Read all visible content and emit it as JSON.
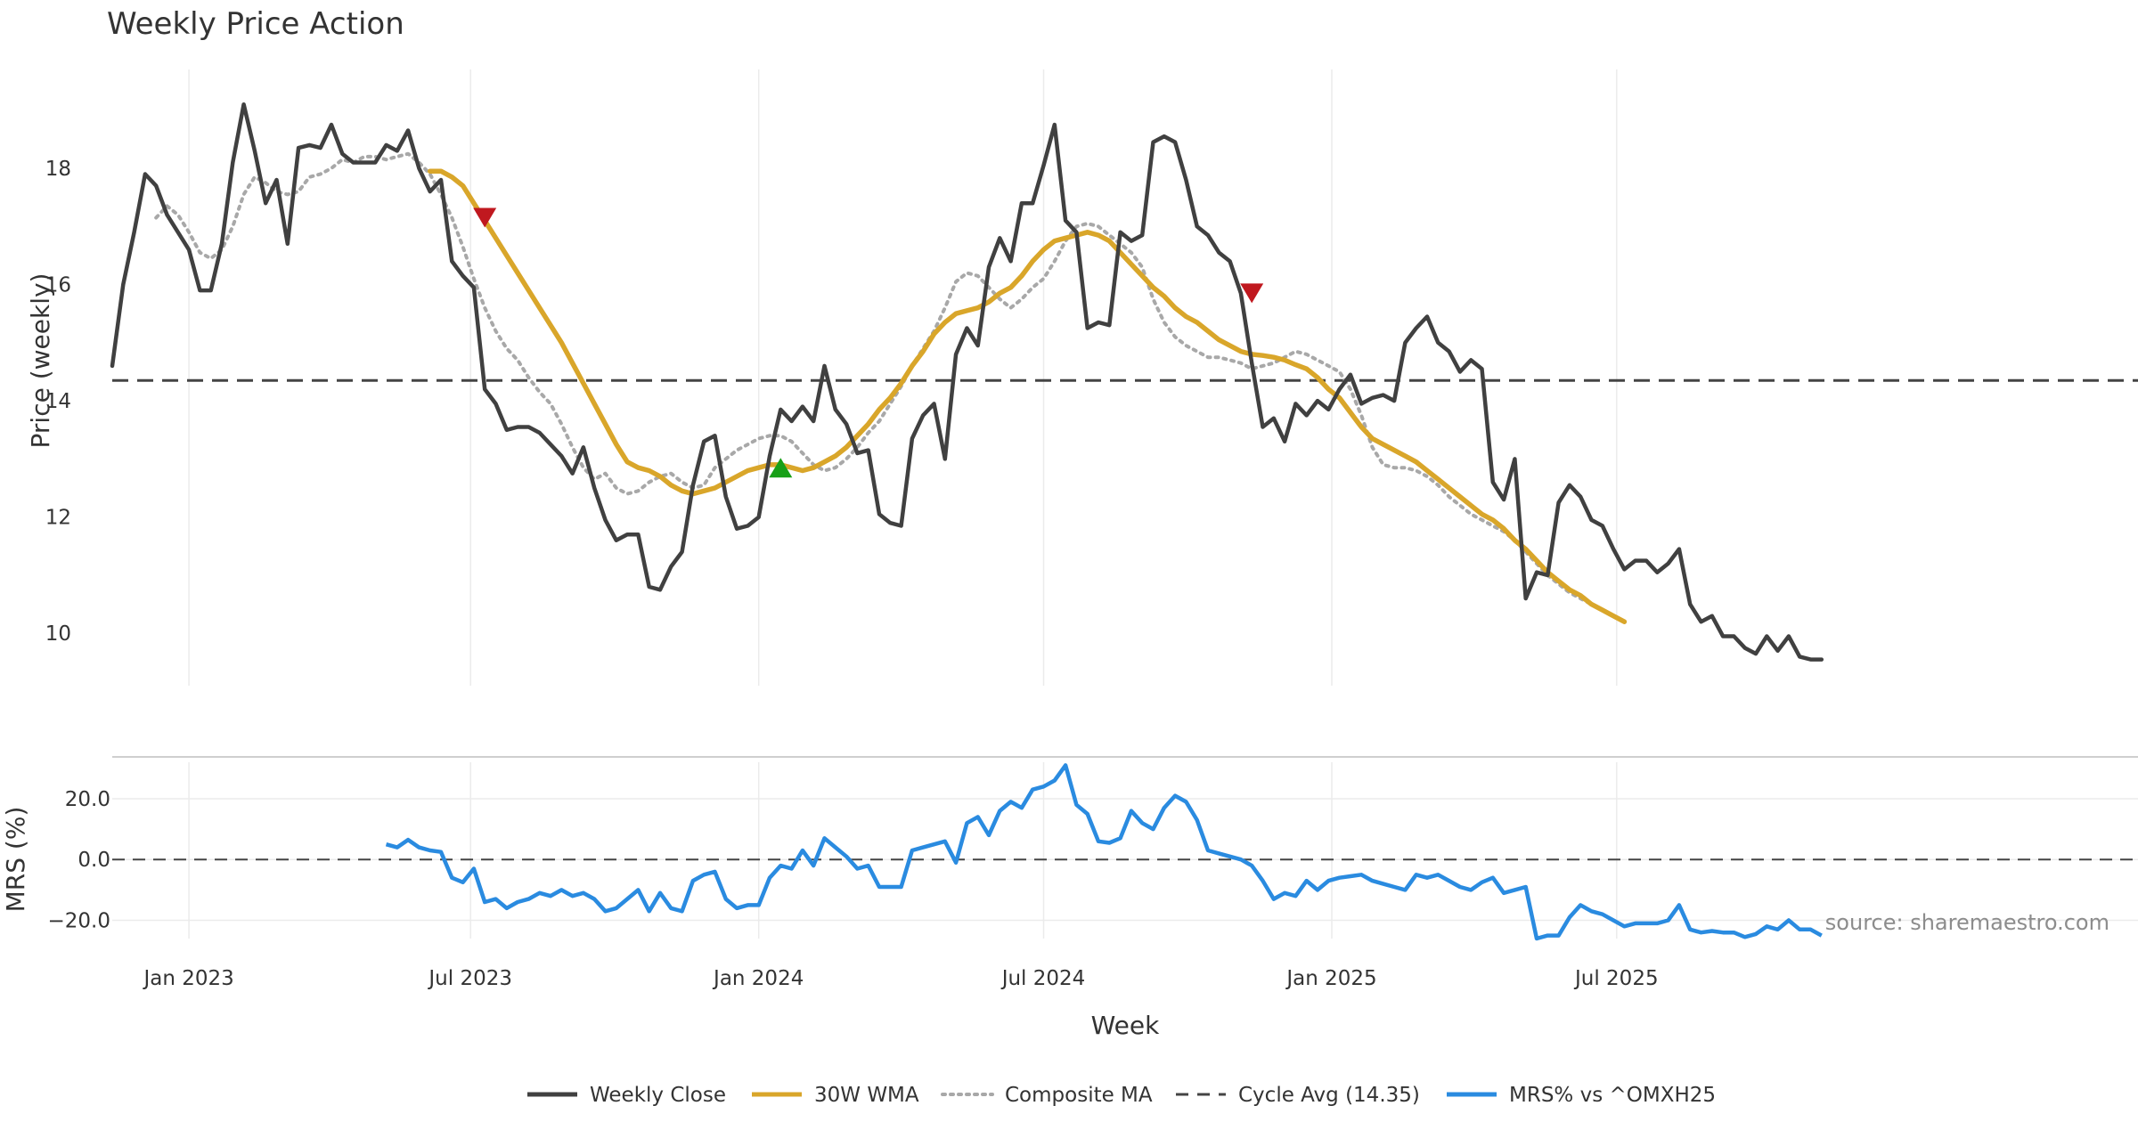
{
  "chart_data": [
    {
      "type": "line",
      "title": "Weekly Price Action",
      "ylabel": "Price (weekly)",
      "ylim": [
        9.1,
        19.7
      ],
      "yticks": [
        10,
        12,
        14,
        16,
        18
      ],
      "x_unit": "weeks since 2022-11-14",
      "cycle_avg": 14.35,
      "series": [
        {
          "name": "Weekly Close",
          "color": "#404040",
          "start": 0,
          "values": [
            14.6,
            16.0,
            16.9,
            17.9,
            17.7,
            17.2,
            16.9,
            16.6,
            15.9,
            15.9,
            16.7,
            18.1,
            19.1,
            18.3,
            17.4,
            17.8,
            16.7,
            18.35,
            18.4,
            18.35,
            18.75,
            18.25,
            18.1,
            18.1,
            18.1,
            18.4,
            18.3,
            18.65,
            18.0,
            17.6,
            17.8,
            16.4,
            16.15,
            15.95,
            14.2,
            13.95,
            13.5,
            13.55,
            13.55,
            13.45,
            13.25,
            13.05,
            12.75,
            13.2,
            12.5,
            11.95,
            11.6,
            11.7,
            11.7,
            10.8,
            10.75,
            11.15,
            11.4,
            12.55,
            13.3,
            13.4,
            12.35,
            11.8,
            11.85,
            12.0,
            13.05,
            13.85,
            13.65,
            13.9,
            13.65,
            14.6,
            13.85,
            13.6,
            13.1,
            13.15,
            12.05,
            11.9,
            11.85,
            13.35,
            13.75,
            13.95,
            13.0,
            14.8,
            15.25,
            14.95,
            16.3,
            16.8,
            16.4,
            17.4,
            17.4,
            18.05,
            18.75,
            17.1,
            16.9,
            15.25,
            15.35,
            15.3,
            16.9,
            16.75,
            16.85,
            18.45,
            18.55,
            18.45,
            17.8,
            17.0,
            16.85,
            16.55,
            16.4,
            15.85,
            14.65,
            13.55,
            13.7,
            13.3,
            13.95,
            13.75,
            14.0,
            13.85,
            14.2,
            14.45,
            13.95,
            14.05,
            14.1,
            14.0,
            15.0,
            15.25,
            15.45,
            15.0,
            14.85,
            14.5,
            14.7,
            14.55,
            12.6,
            12.3,
            13.0,
            10.6,
            11.05,
            11.0,
            12.25,
            12.55,
            12.35,
            11.95,
            11.85,
            11.45,
            11.1,
            11.25,
            11.25,
            11.05,
            11.2,
            11.45,
            10.5,
            10.2,
            10.3,
            9.95,
            9.95,
            9.75,
            9.65,
            9.95,
            9.7,
            9.95,
            9.6,
            9.55,
            9.55
          ]
        },
        {
          "name": "30W WMA",
          "color": "#d9a62a",
          "start": 29,
          "values": [
            17.95,
            17.95,
            17.85,
            17.7,
            17.4,
            17.1,
            16.8,
            16.5,
            16.2,
            15.9,
            15.6,
            15.3,
            15.0,
            14.65,
            14.3,
            13.95,
            13.6,
            13.25,
            12.95,
            12.85,
            12.8,
            12.7,
            12.55,
            12.45,
            12.4,
            12.45,
            12.5,
            12.6,
            12.7,
            12.8,
            12.85,
            12.9,
            12.9,
            12.85,
            12.8,
            12.85,
            12.95,
            13.05,
            13.2,
            13.4,
            13.6,
            13.85,
            14.05,
            14.3,
            14.6,
            14.85,
            15.15,
            15.35,
            15.5,
            15.55,
            15.6,
            15.7,
            15.85,
            15.95,
            16.15,
            16.4,
            16.6,
            16.75,
            16.8,
            16.85,
            16.9,
            16.85,
            16.75,
            16.55,
            16.35,
            16.15,
            15.95,
            15.8,
            15.6,
            15.45,
            15.35,
            15.2,
            15.05,
            14.95,
            14.85,
            14.8,
            14.78,
            14.75,
            14.7,
            14.62,
            14.55,
            14.4,
            14.2,
            14.05,
            13.8,
            13.55,
            13.35,
            13.25,
            13.15,
            13.05,
            12.95,
            12.8,
            12.65,
            12.5,
            12.35,
            12.2,
            12.05,
            11.95,
            11.8,
            11.6,
            11.45,
            11.25,
            11.05,
            10.9,
            10.75,
            10.65,
            10.5,
            10.4,
            10.3,
            10.2
          ]
        },
        {
          "name": "Composite MA",
          "color": "#a8a8a8",
          "start": 4,
          "values": [
            17.15,
            17.35,
            17.2,
            16.9,
            16.55,
            16.45,
            16.6,
            17.0,
            17.55,
            17.85,
            17.75,
            17.6,
            17.55,
            17.6,
            17.85,
            17.9,
            18.0,
            18.15,
            18.1,
            18.2,
            18.2,
            18.15,
            18.2,
            18.25,
            18.1,
            17.9,
            17.55,
            17.15,
            16.65,
            16.1,
            15.6,
            15.2,
            14.9,
            14.7,
            14.4,
            14.15,
            13.95,
            13.6,
            13.2,
            12.85,
            12.65,
            12.75,
            12.5,
            12.4,
            12.45,
            12.6,
            12.7,
            12.75,
            12.6,
            12.5,
            12.55,
            12.85,
            13.0,
            13.15,
            13.25,
            13.35,
            13.4,
            13.4,
            13.3,
            13.1,
            12.9,
            12.8,
            12.85,
            13.0,
            13.2,
            13.45,
            13.65,
            13.95,
            14.25,
            14.6,
            14.9,
            15.2,
            15.6,
            16.05,
            16.2,
            16.15,
            15.95,
            15.75,
            15.6,
            15.75,
            15.95,
            16.1,
            16.4,
            16.75,
            17.0,
            17.05,
            17.0,
            16.85,
            16.7,
            16.55,
            16.3,
            15.75,
            15.35,
            15.1,
            14.95,
            14.85,
            14.75,
            14.75,
            14.7,
            14.65,
            14.55,
            14.6,
            14.65,
            14.75,
            14.85,
            14.8,
            14.7,
            14.6,
            14.5,
            14.2,
            13.75,
            13.2,
            12.9,
            12.85,
            12.85,
            12.8,
            12.7,
            12.55,
            12.35,
            12.2,
            12.05,
            11.95,
            11.85,
            11.75,
            11.6,
            11.4,
            11.2,
            11.0,
            10.85,
            10.7,
            10.6,
            10.5,
            10.4,
            10.3,
            10.2
          ]
        }
      ],
      "signals": [
        {
          "type": "sell",
          "week": 34,
          "y": 17.15,
          "color": "#c0181f"
        },
        {
          "type": "buy",
          "week": 61,
          "y": 12.85,
          "color": "#18a018"
        },
        {
          "type": "sell",
          "week": 104,
          "y": 15.85,
          "color": "#c0181f"
        }
      ]
    },
    {
      "type": "line",
      "ylabel": "MRS (%)",
      "ylim": [
        -26,
        32
      ],
      "yticks": [
        "20.0",
        "0.0",
        "−20.0"
      ],
      "ytick_values": [
        20,
        0,
        -20
      ],
      "xlabel": "Week",
      "xticks": [
        {
          "label": "Jan 2023",
          "week": 7.0
        },
        {
          "label": "Jul 2023",
          "week": 32.7
        },
        {
          "label": "Jan 2024",
          "week": 59.0
        },
        {
          "label": "Jul 2024",
          "week": 85.0
        },
        {
          "label": "Jan 2025",
          "week": 111.3
        },
        {
          "label": "Jul 2025",
          "week": 137.3
        }
      ],
      "series": [
        {
          "name": "MRS% vs ^OMXH25",
          "color": "#2a8be0",
          "start": 25,
          "values": [
            5,
            4,
            6.5,
            4,
            3,
            2.5,
            -6,
            -7.5,
            -3,
            -14,
            -13,
            -16,
            -14,
            -13,
            -11,
            -12,
            -10,
            -12,
            -11,
            -13,
            -17,
            -16,
            -13,
            -10,
            -17,
            -11,
            -16,
            -17,
            -7,
            -5,
            -4,
            -13,
            -16,
            -15,
            -15,
            -6,
            -2,
            -3,
            3,
            -2,
            7,
            4,
            1,
            -3,
            -2,
            -9,
            -9,
            -9,
            3,
            4,
            5,
            6,
            -1,
            12,
            14,
            8,
            16,
            19,
            17,
            23,
            24,
            26,
            31,
            18,
            15,
            6,
            5.5,
            7,
            16,
            12,
            10,
            17,
            21,
            19,
            13,
            3,
            2,
            1,
            0,
            -2,
            -7,
            -13,
            -11,
            -12,
            -7,
            -10,
            -7,
            -6,
            -5.5,
            -5,
            -7,
            -8,
            -9,
            -10,
            -5,
            -6,
            -5,
            -7,
            -9,
            -10,
            -7.5,
            -6,
            -11,
            -10,
            -9,
            -26,
            -25,
            -25,
            -19,
            -15,
            -17,
            -18,
            -20,
            -22,
            -21,
            -21,
            -21,
            -20,
            -15,
            -23,
            -24,
            -23.5,
            -24,
            -24,
            -25.5,
            -24.5,
            -22,
            -23,
            -20,
            -23,
            -23,
            -25
          ]
        }
      ]
    }
  ],
  "legend": [
    {
      "label": "Weekly Close",
      "style": "solid",
      "color": "#404040"
    },
    {
      "label": "30W WMA",
      "style": "solid",
      "color": "#d9a62a"
    },
    {
      "label": "Composite MA",
      "style": "dotted",
      "color": "#a8a8a8"
    },
    {
      "label": "Cycle Avg (14.35)",
      "style": "dashed",
      "color": "#444444"
    },
    {
      "label": "MRS% vs ^OMXH25",
      "style": "solid",
      "color": "#2a8be0"
    }
  ],
  "source": "source: sharemaestro.com"
}
